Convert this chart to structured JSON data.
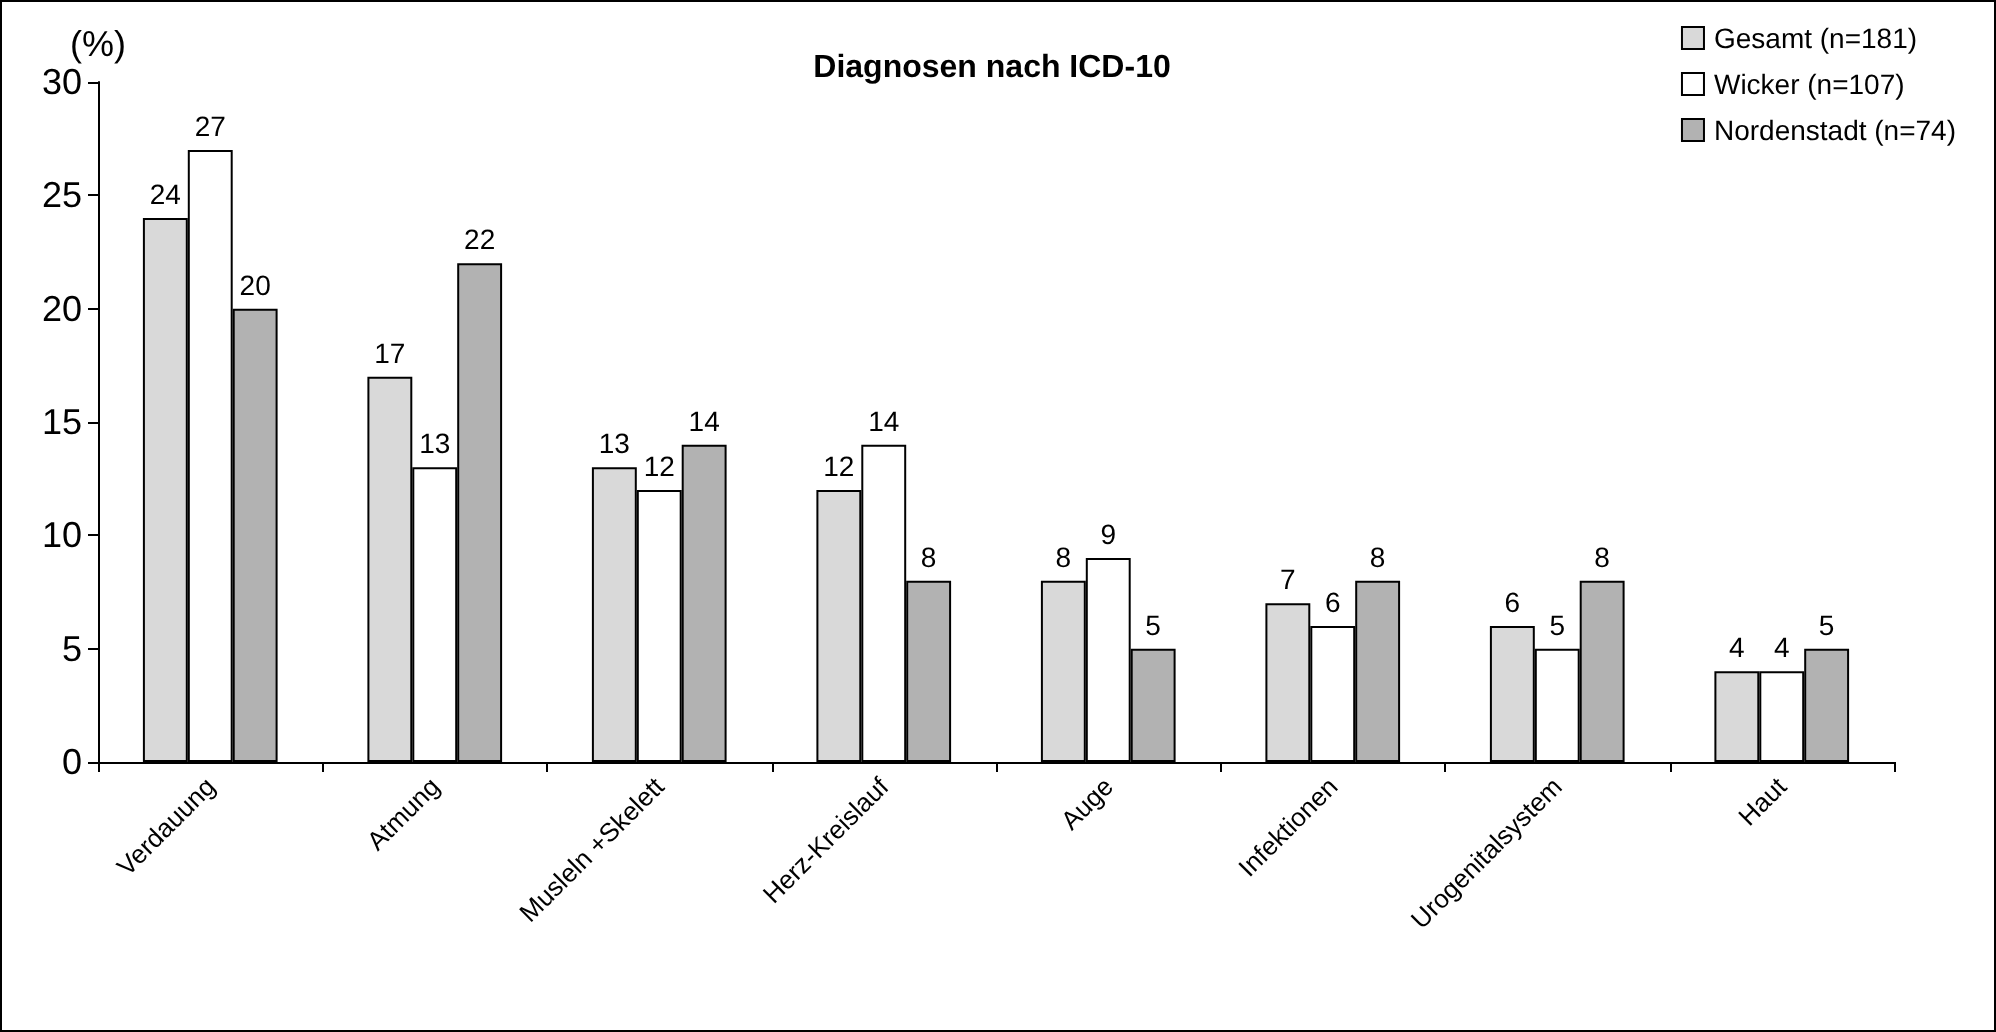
{
  "chart_data": {
    "type": "bar",
    "title": "Diagnosen nach ICD-10",
    "ylabel": "(%)",
    "categories": [
      "Verdauung",
      "Atmung",
      "Musleln +Skelett",
      "Herz-Kreislauf",
      "Auge",
      "Infektionen",
      "Urogenitalsystem",
      "Haut"
    ],
    "series": [
      {
        "name": "Gesamt (n=181)",
        "color": "#d9d9d9",
        "values": [
          24,
          17,
          13,
          12,
          8,
          7,
          6,
          4
        ]
      },
      {
        "name": "Wicker (n=107)",
        "color": "#ffffff",
        "values": [
          27,
          13,
          12,
          14,
          9,
          6,
          5,
          4
        ]
      },
      {
        "name": "Nordenstadt (n=74)",
        "color": "#b2b2b2",
        "values": [
          20,
          22,
          14,
          8,
          5,
          8,
          8,
          5
        ]
      }
    ],
    "ylim": [
      0,
      30
    ],
    "yticks": [
      0,
      5,
      10,
      15,
      20,
      25,
      30
    ],
    "grid": false,
    "legend": "top right",
    "data_labels": true
  }
}
